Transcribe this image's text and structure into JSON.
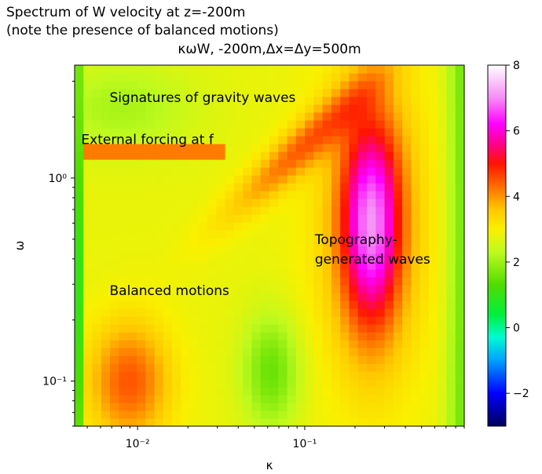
{
  "page": {
    "title_line1": "Spectrum of W velocity at z=-200m",
    "title_line2": "(note the presence of balanced motions)"
  },
  "chart_data": {
    "type": "heatmap",
    "title": "κωW, -200m,Δx=Δy=500m",
    "xlabel": "κ",
    "ylabel": "ω",
    "xscale": "log",
    "yscale": "log",
    "xlim": [
      0.0042,
      0.9
    ],
    "ylim": [
      0.06,
      3.6
    ],
    "xticks": [
      {
        "value": 0.01,
        "label": "10⁻²"
      },
      {
        "value": 0.1,
        "label": "10⁻¹"
      }
    ],
    "yticks": [
      {
        "value": 0.1,
        "label": "10⁻¹"
      },
      {
        "value": 1,
        "label": "10⁰"
      }
    ],
    "colorbar": {
      "range": [
        -3,
        8
      ],
      "ticks": [
        -2,
        0,
        2,
        4,
        6,
        8
      ],
      "colormap": "gist_ncar-like (dark blue → cyan → green → yellow → orange → red → magenta → white)"
    },
    "annotations": [
      {
        "text": "Signatures of gravity waves",
        "kappa": 0.0068,
        "omega": 2.5
      },
      {
        "text": "External forcing at f",
        "kappa": 0.0046,
        "omega": 1.55
      },
      {
        "text": "Topography-",
        "kappa": 0.115,
        "omega": 0.5
      },
      {
        "text": "generated waves",
        "kappa": 0.115,
        "omega": 0.4
      },
      {
        "text": "Balanced motions",
        "kappa": 0.0068,
        "omega": 0.28
      }
    ],
    "features": [
      {
        "name": "forcing_band",
        "omega": 1.35,
        "kappa_range": [
          0.005,
          0.035
        ],
        "value": 4.2
      },
      {
        "name": "topographic_max",
        "kappa": 0.25,
        "omega": 0.6,
        "value": 6.2
      },
      {
        "name": "balanced_max",
        "kappa": 0.009,
        "omega": 0.1,
        "value": 4.4
      }
    ]
  }
}
